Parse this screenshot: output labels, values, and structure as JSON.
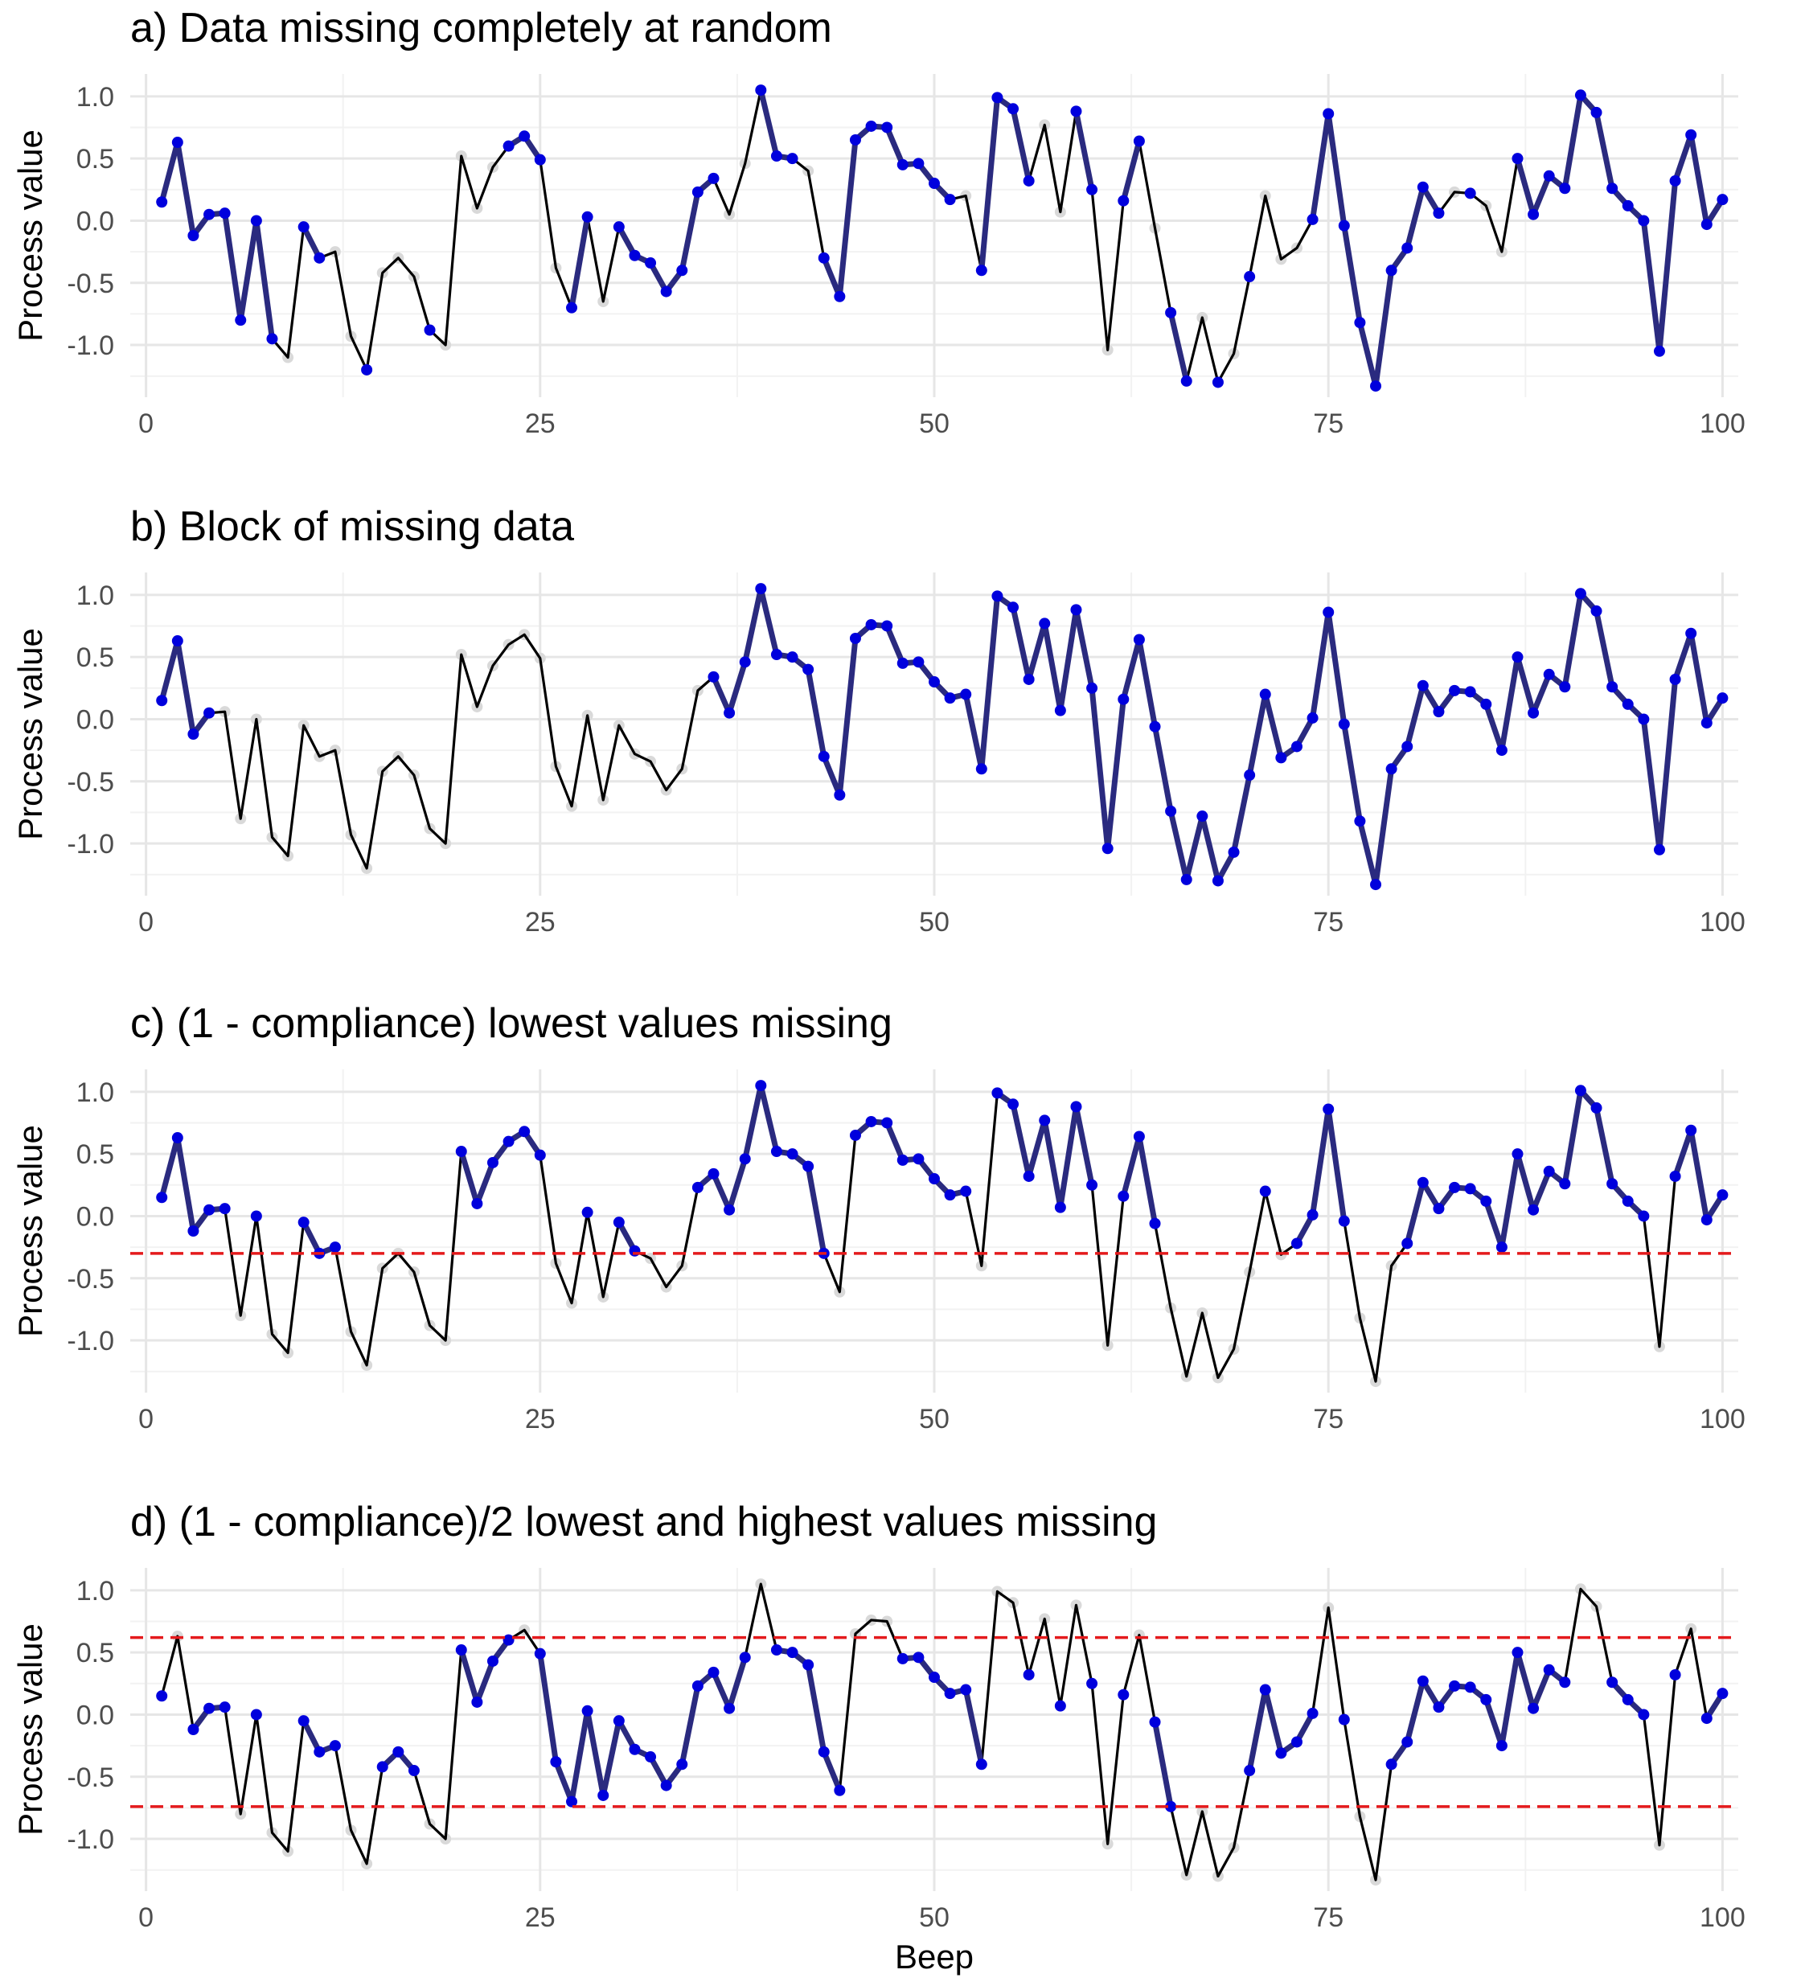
{
  "colors": {
    "background": "#ffffff",
    "grid_major": "#e6e6e6",
    "grid_minor": "#f2f2f2",
    "full_line": "#000000",
    "missing_point": "#d9d9d9",
    "observed_line": "#2a2a7f",
    "observed_point": "#0000dd",
    "threshold": "#e41a1c",
    "tick_text": "#4d4d4d"
  },
  "chart_data": {
    "type": "line",
    "x": [
      1,
      2,
      3,
      4,
      5,
      6,
      7,
      8,
      9,
      10,
      11,
      12,
      13,
      14,
      15,
      16,
      17,
      18,
      19,
      20,
      21,
      22,
      23,
      24,
      25,
      26,
      27,
      28,
      29,
      30,
      31,
      32,
      33,
      34,
      35,
      36,
      37,
      38,
      39,
      40,
      41,
      42,
      43,
      44,
      45,
      46,
      47,
      48,
      49,
      50,
      51,
      52,
      53,
      54,
      55,
      56,
      57,
      58,
      59,
      60,
      61,
      62,
      63,
      64,
      65,
      66,
      67,
      68,
      69,
      70,
      71,
      72,
      73,
      74,
      75,
      76,
      77,
      78,
      79,
      80,
      81,
      82,
      83,
      84,
      85,
      86,
      87,
      88,
      89,
      90,
      91,
      92,
      93,
      94,
      95,
      96,
      97,
      98,
      99,
      100
    ],
    "values": [
      0.15,
      0.63,
      -0.12,
      0.05,
      0.06,
      -0.8,
      0.0,
      -0.95,
      -1.1,
      -0.05,
      -0.3,
      -0.25,
      -0.93,
      -1.2,
      -0.42,
      -0.3,
      -0.45,
      -0.88,
      -1.0,
      0.52,
      0.1,
      0.43,
      0.6,
      0.68,
      0.49,
      -0.38,
      -0.7,
      0.03,
      -0.65,
      -0.05,
      -0.28,
      -0.34,
      -0.57,
      -0.4,
      0.23,
      0.34,
      0.05,
      0.46,
      1.05,
      0.52,
      0.5,
      0.4,
      -0.3,
      -0.61,
      0.65,
      0.76,
      0.75,
      0.45,
      0.46,
      0.3,
      0.17,
      0.2,
      -0.4,
      0.99,
      0.9,
      0.32,
      0.77,
      0.07,
      0.88,
      0.25,
      -1.04,
      0.16,
      0.64,
      -0.06,
      -0.74,
      -1.29,
      -0.78,
      -1.3,
      -1.07,
      -0.45,
      0.2,
      -0.31,
      -0.22,
      0.01,
      0.86,
      -0.04,
      -0.82,
      -1.33,
      -0.4,
      -0.22,
      0.27,
      0.06,
      0.23,
      0.22,
      0.12,
      -0.25,
      0.5,
      0.05,
      0.36,
      0.26,
      1.01,
      0.87,
      0.26,
      0.12,
      0.0,
      -1.05,
      0.32,
      0.69,
      -0.03,
      0.17
    ],
    "xlabel": "Beep",
    "ylabel": "Process value",
    "xlim": [
      -1,
      101
    ],
    "ylim": [
      -1.42,
      1.18
    ],
    "xticks": [
      0,
      25,
      50,
      75,
      100
    ],
    "xtick_labels": [
      "0",
      "25",
      "50",
      "75",
      "100"
    ],
    "yticks": [
      1.0,
      0.5,
      0.0,
      -0.5,
      -1.0
    ],
    "ytick_labels": [
      "1.0",
      "0.5",
      "0.0",
      "-0.5",
      "-1.0"
    ],
    "panels": [
      {
        "title": "a) Data missing completely at random",
        "observed": [
          1,
          2,
          3,
          4,
          5,
          6,
          7,
          8,
          10,
          11,
          14,
          18,
          23,
          24,
          25,
          27,
          28,
          30,
          31,
          32,
          33,
          34,
          35,
          36,
          39,
          40,
          41,
          43,
          44,
          45,
          46,
          47,
          48,
          49,
          50,
          51,
          53,
          54,
          55,
          56,
          59,
          60,
          62,
          63,
          65,
          66,
          68,
          70,
          74,
          75,
          76,
          77,
          78,
          79,
          80,
          81,
          82,
          84,
          87,
          88,
          89,
          90,
          91,
          92,
          93,
          94,
          95,
          96,
          97,
          98,
          99,
          100
        ],
        "thresholds": []
      },
      {
        "title": "b) Block of missing data",
        "observed": [
          1,
          2,
          3,
          4,
          36,
          37,
          38,
          39,
          40,
          41,
          42,
          43,
          44,
          45,
          46,
          47,
          48,
          49,
          50,
          51,
          52,
          53,
          54,
          55,
          56,
          57,
          58,
          59,
          60,
          61,
          62,
          63,
          64,
          65,
          66,
          67,
          68,
          69,
          70,
          71,
          72,
          73,
          74,
          75,
          76,
          77,
          78,
          79,
          80,
          81,
          82,
          83,
          84,
          85,
          86,
          87,
          88,
          89,
          90,
          91,
          92,
          93,
          94,
          95,
          96,
          97,
          98,
          99,
          100
        ],
        "thresholds": []
      },
      {
        "title": "c) (1 - compliance) lowest values missing",
        "observed": [
          1,
          2,
          3,
          4,
          5,
          7,
          10,
          11,
          12,
          20,
          21,
          22,
          23,
          24,
          25,
          28,
          30,
          31,
          35,
          36,
          37,
          38,
          39,
          40,
          41,
          42,
          43,
          45,
          46,
          47,
          48,
          49,
          50,
          51,
          52,
          54,
          55,
          56,
          57,
          58,
          59,
          60,
          62,
          63,
          64,
          71,
          73,
          74,
          75,
          76,
          80,
          81,
          82,
          83,
          84,
          85,
          86,
          87,
          88,
          89,
          90,
          91,
          92,
          93,
          94,
          95,
          97,
          98,
          99,
          100
        ],
        "thresholds": [
          -0.3
        ]
      },
      {
        "title": "d) (1 - compliance)/2 lowest and highest values missing",
        "observed": [
          1,
          3,
          4,
          5,
          7,
          10,
          11,
          12,
          15,
          16,
          17,
          20,
          21,
          22,
          23,
          25,
          26,
          27,
          28,
          29,
          30,
          31,
          32,
          33,
          34,
          35,
          36,
          37,
          38,
          40,
          41,
          42,
          43,
          44,
          48,
          49,
          50,
          51,
          52,
          53,
          56,
          58,
          60,
          62,
          64,
          65,
          70,
          71,
          72,
          73,
          74,
          76,
          79,
          80,
          81,
          82,
          83,
          84,
          85,
          86,
          87,
          88,
          89,
          90,
          93,
          94,
          95,
          97,
          99,
          100
        ],
        "thresholds": [
          0.62,
          -0.74
        ]
      }
    ]
  }
}
